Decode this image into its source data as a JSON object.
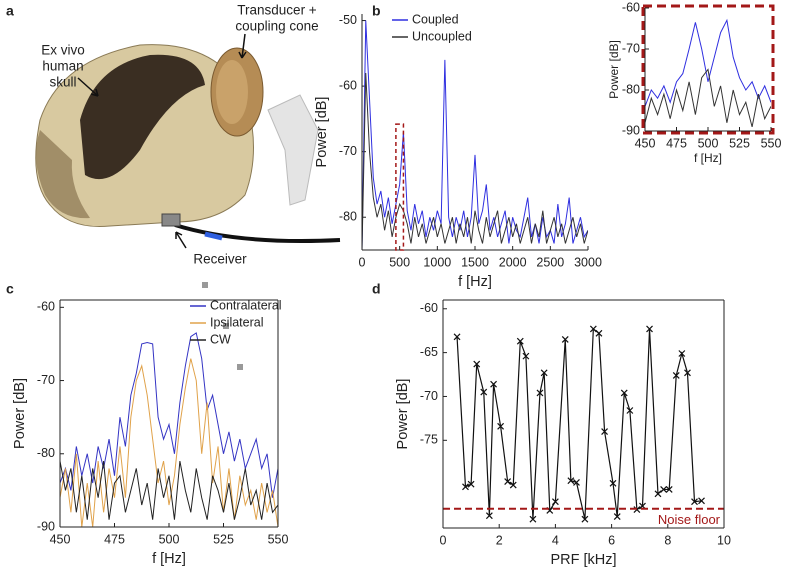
{
  "photo": {
    "panel": "a",
    "skull_label": [
      "Ex vivo",
      "human",
      "skull"
    ],
    "transducer_label": [
      "Transducer +",
      "coupling cone"
    ],
    "receiver_label": "Receiver"
  },
  "chart_data": [
    {
      "type": "line",
      "panel": "b",
      "xlabel": "f [Hz]",
      "ylabel": "Power [dB]",
      "xlim": [
        0,
        3000
      ],
      "ylim": [
        -85,
        -49
      ],
      "xticks": [
        0,
        500,
        1000,
        1500,
        2000,
        2500,
        3000
      ],
      "yticks": [
        -50,
        -60,
        -70,
        -80
      ],
      "legend": "upper left",
      "x": [
        0,
        50,
        100,
        150,
        200,
        250,
        300,
        350,
        400,
        450,
        500,
        550,
        600,
        650,
        700,
        750,
        800,
        850,
        900,
        950,
        1000,
        1050,
        1100,
        1150,
        1200,
        1250,
        1300,
        1350,
        1400,
        1450,
        1500,
        1550,
        1600,
        1650,
        1700,
        1750,
        1800,
        1850,
        1900,
        1950,
        2000,
        2050,
        2100,
        2150,
        2200,
        2250,
        2300,
        2350,
        2400,
        2450,
        2500,
        2550,
        2600,
        2650,
        2700,
        2750,
        2800,
        2850,
        2900,
        2950,
        3000
      ],
      "series": [
        {
          "name": "Coupled",
          "color": "#2f2fe0",
          "values": [
            -85,
            -50,
            -62,
            -74,
            -78,
            -76,
            -80,
            -77,
            -81,
            -78,
            -75,
            -67,
            -79,
            -82,
            -78,
            -81,
            -79,
            -83,
            -80,
            -82,
            -79,
            -81,
            -56,
            -80,
            -83,
            -80,
            -82,
            -79,
            -83,
            -80,
            -70.5,
            -81,
            -79,
            -75,
            -82,
            -80,
            -83,
            -81,
            -79,
            -84,
            -80,
            -82,
            -83,
            -80,
            -77,
            -83,
            -81,
            -84,
            -80,
            -83,
            -82,
            -84,
            -78,
            -83,
            -81,
            -77,
            -84,
            -82,
            -80,
            -83,
            -82
          ]
        },
        {
          "name": "Uncoupled",
          "color": "#333333",
          "values": [
            -85,
            -58,
            -70,
            -77,
            -80,
            -78,
            -82,
            -79,
            -83,
            -80,
            -78,
            -79,
            -81,
            -84,
            -80,
            -83,
            -81,
            -84,
            -82,
            -80,
            -83,
            -81,
            -84,
            -82,
            -80,
            -84,
            -81,
            -83,
            -80,
            -84,
            -79,
            -82,
            -84,
            -80,
            -83,
            -81,
            -79,
            -84,
            -82,
            -80,
            -83,
            -81,
            -84,
            -82,
            -80,
            -84,
            -81,
            -83,
            -79,
            -84,
            -82,
            -80,
            -83,
            -81,
            -84,
            -82,
            -80,
            -83,
            -81,
            -84,
            -82
          ]
        }
      ]
    },
    {
      "type": "line",
      "xlabel": "f [Hz]",
      "ylabel": "Power [dB]",
      "xlim": [
        450,
        550
      ],
      "ylim": [
        -90,
        -60
      ],
      "xticks": [
        450,
        475,
        500,
        525,
        550
      ],
      "yticks": [
        -60,
        -70,
        -80,
        -90
      ],
      "x": [
        450,
        455,
        460,
        465,
        470,
        475,
        480,
        485,
        490,
        495,
        500,
        505,
        510,
        515,
        520,
        525,
        530,
        535,
        540,
        545,
        550
      ],
      "series": [
        {
          "name": "Coupled",
          "color": "#2f2fe0",
          "values": [
            -84,
            -80,
            -82,
            -79,
            -83,
            -78,
            -76,
            -70,
            -63.5,
            -70,
            -78,
            -72,
            -66,
            -63,
            -72,
            -77,
            -80,
            -78,
            -82,
            -79,
            -83
          ]
        },
        {
          "name": "Uncoupled",
          "color": "#333333",
          "values": [
            -88,
            -82,
            -86,
            -81,
            -87,
            -80,
            -85,
            -78,
            -86,
            -77,
            -75,
            -84,
            -79,
            -88,
            -80,
            -86,
            -83,
            -89,
            -81,
            -87,
            -84
          ]
        }
      ]
    },
    {
      "type": "line",
      "panel": "c",
      "xlabel": "f [Hz]",
      "ylabel": "Power [dB]",
      "xlim": [
        450,
        550
      ],
      "ylim": [
        -90,
        -59
      ],
      "xticks": [
        450,
        475,
        500,
        525,
        550
      ],
      "yticks": [
        -60,
        -70,
        -80,
        -90
      ],
      "legend": "upper right",
      "x": [
        450,
        452.5,
        455,
        457.5,
        460,
        462.5,
        465,
        467.5,
        470,
        472.5,
        475,
        477.5,
        480,
        482.5,
        485,
        487.5,
        490,
        492.5,
        495,
        497.5,
        500,
        502.5,
        505,
        507.5,
        510,
        512.5,
        515,
        517.5,
        520,
        522.5,
        525,
        527.5,
        530,
        532.5,
        535,
        537.5,
        540,
        542.5,
        545,
        547.5,
        550
      ],
      "series": [
        {
          "name": "Contralateral",
          "color": "#3434c4",
          "values": [
            -84,
            -82,
            -85,
            -79,
            -83,
            -80,
            -84,
            -79,
            -82,
            -78,
            -83,
            -75,
            -79,
            -72,
            -69,
            -65,
            -64.8,
            -65,
            -75,
            -78,
            -76,
            -80,
            -73,
            -68,
            -64,
            -63.5,
            -67,
            -74,
            -72,
            -76,
            -80,
            -77,
            -81,
            -78,
            -82,
            -80,
            -78,
            -82,
            -80,
            -86,
            -82
          ]
        },
        {
          "name": "Ipsilateral",
          "color": "#e0a24a",
          "values": [
            -86,
            -82,
            -88,
            -80,
            -90,
            -84,
            -90,
            -81,
            -88,
            -82,
            -86,
            -79,
            -86,
            -75,
            -70,
            -68,
            -72,
            -78,
            -84,
            -81,
            -87,
            -83,
            -76,
            -71,
            -67,
            -70,
            -80,
            -73,
            -84,
            -79,
            -88,
            -82,
            -89,
            -83,
            -87,
            -85,
            -89,
            -84,
            -88,
            -85,
            -90
          ]
        },
        {
          "name": "CW",
          "color": "#222222",
          "values": [
            -81,
            -85,
            -82,
            -88,
            -83,
            -89,
            -82,
            -86,
            -81,
            -89,
            -84,
            -83,
            -88,
            -85,
            -82,
            -87,
            -84,
            -89,
            -82,
            -86,
            -83,
            -89,
            -81,
            -85,
            -88,
            -82,
            -86,
            -89,
            -83,
            -85,
            -88,
            -84,
            -89,
            -86,
            -82,
            -87,
            -85,
            -89,
            -84,
            -88,
            -87
          ]
        }
      ]
    },
    {
      "type": "line",
      "panel": "d",
      "xlabel": "PRF [kHz]",
      "ylabel": "Power [dB]",
      "xlim": [
        0,
        10
      ],
      "ylim": [
        -85,
        -59
      ],
      "xticks": [
        0,
        2,
        4,
        6,
        8,
        10
      ],
      "yticks": [
        -60,
        -65,
        -70,
        -75
      ],
      "marker": "x",
      "x": [
        0.5,
        0.8,
        1.0,
        1.2,
        1.45,
        1.65,
        1.8,
        2.05,
        2.3,
        2.5,
        2.75,
        2.95,
        3.2,
        3.45,
        3.6,
        3.8,
        4.0,
        4.35,
        4.55,
        4.75,
        5.05,
        5.35,
        5.55,
        5.75,
        6.05,
        6.2,
        6.45,
        6.65,
        6.9,
        7.1,
        7.35,
        7.65,
        7.85,
        8.05,
        8.3,
        8.5,
        8.7,
        8.95,
        9.2
      ],
      "series": [
        {
          "color": "#111111",
          "values": [
            -63.2,
            -80.3,
            -80.0,
            -66.3,
            -69.5,
            -83.6,
            -68.6,
            -73.4,
            -79.7,
            -80.1,
            -63.7,
            -65.4,
            -84.0,
            -69.6,
            -67.3,
            -83.0,
            -82.0,
            -63.5,
            -79.6,
            -79.8,
            -84.0,
            -62.3,
            -62.8,
            -74.0,
            -79.9,
            -83.7,
            -69.6,
            -71.6,
            -82.9,
            -82.5,
            -62.3,
            -81.1,
            -80.6,
            -80.6,
            -67.6,
            -65.1,
            -67.3,
            -82.0,
            -81.9
          ]
        }
      ],
      "reference_line": {
        "value": -82.8,
        "label": "Noise floor",
        "color": "#a31818"
      }
    }
  ]
}
